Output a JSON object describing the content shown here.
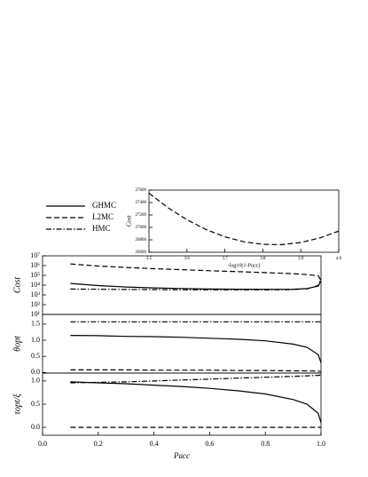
{
  "chart_data": [
    {
      "type": "line",
      "ylabel": "Cost",
      "log_y": true,
      "x": [
        0.1,
        0.2,
        0.3,
        0.4,
        0.5,
        0.6,
        0.7,
        0.8,
        0.9,
        0.95,
        0.99,
        1.0
      ],
      "xlim": [
        0,
        1.0
      ],
      "ylim": [
        10,
        10000000
      ],
      "yticks": [
        {
          "value": 10,
          "label": "10¹"
        },
        {
          "value": 100,
          "label": "10²"
        },
        {
          "value": 1000,
          "label": "10³"
        },
        {
          "value": 10000,
          "label": "10⁴"
        },
        {
          "value": 100000,
          "label": "10⁵"
        },
        {
          "value": 1000000,
          "label": "10⁶"
        },
        {
          "value": 10000000,
          "label": "10⁷"
        }
      ],
      "series": [
        {
          "name": "GHMC",
          "color": "#000000",
          "dash": "solid",
          "values": [
            15000,
            9000,
            6500,
            5200,
            4500,
            4000,
            3800,
            3700,
            3800,
            4500,
            8000,
            30000
          ]
        },
        {
          "name": "L2MC",
          "color": "#000000",
          "dash": "dashed",
          "values": [
            1500000,
            900000,
            650000,
            480000,
            380000,
            300000,
            240000,
            190000,
            150000,
            120000,
            90000,
            30000
          ]
        },
        {
          "name": "HMC",
          "color": "#000000",
          "dash": "dashdot",
          "values": [
            4000,
            3800,
            3600,
            3500,
            3400,
            3300,
            3300,
            3300,
            3500,
            4200,
            9000,
            50000
          ]
        }
      ]
    },
    {
      "type": "line",
      "ylabel": "θopt",
      "x": [
        0.1,
        0.2,
        0.3,
        0.4,
        0.5,
        0.6,
        0.7,
        0.8,
        0.9,
        0.95,
        0.99,
        1.0
      ],
      "xlim": [
        0,
        1.0
      ],
      "ylim": [
        -0.02,
        1.8
      ],
      "yticks": [
        "0.0",
        "0.5",
        "1.0",
        "1.5"
      ],
      "series": [
        {
          "color": "#000000",
          "dash": "solid",
          "values": [
            1.15,
            1.14,
            1.12,
            1.11,
            1.09,
            1.06,
            1.03,
            0.98,
            0.88,
            0.78,
            0.55,
            0.3
          ]
        },
        {
          "color": "#000000",
          "dash": "dashed",
          "values": [
            0.08,
            0.08,
            0.08,
            0.07,
            0.07,
            0.07,
            0.06,
            0.06,
            0.05,
            0.05,
            0.04,
            0.03
          ]
        },
        {
          "color": "#000000",
          "dash": "dashdot",
          "values": [
            1.57,
            1.57,
            1.57,
            1.57,
            1.57,
            1.57,
            1.57,
            1.57,
            1.57,
            1.57,
            1.57,
            1.57
          ]
        }
      ]
    },
    {
      "type": "line",
      "ylabel": "τopt/ξ",
      "xlabel": "Pacc",
      "x": [
        0.1,
        0.2,
        0.3,
        0.4,
        0.5,
        0.6,
        0.7,
        0.8,
        0.9,
        0.95,
        0.99,
        1.0
      ],
      "xlim": [
        0,
        1.0
      ],
      "ylim": [
        -0.17,
        1.17
      ],
      "yticks": [
        "0.0",
        "0.5",
        "1.0"
      ],
      "xticks": [
        "0.0",
        "0.2",
        "0.4",
        "0.6",
        "0.8",
        "1.0"
      ],
      "series": [
        {
          "color": "#000000",
          "dash": "solid",
          "values": [
            0.98,
            0.96,
            0.94,
            0.91,
            0.88,
            0.84,
            0.79,
            0.72,
            0.6,
            0.5,
            0.3,
            0.1
          ]
        },
        {
          "color": "#000000",
          "dash": "dashed",
          "values": [
            0,
            0,
            0,
            0,
            0,
            0,
            0,
            0,
            0,
            0,
            0,
            0
          ]
        },
        {
          "color": "#000000",
          "dash": "dashdot",
          "values": [
            0.96,
            0.97,
            0.98,
            1.0,
            1.02,
            1.04,
            1.06,
            1.08,
            1.1,
            1.11,
            1.12,
            1.13
          ]
        }
      ]
    },
    {
      "type": "line",
      "ylabel": "Cost",
      "xlabel": "-log10(1-Pacc)",
      "x": [
        3.5,
        3.55,
        3.6,
        3.65,
        3.7,
        3.75,
        3.8,
        3.85,
        3.9,
        3.95,
        4.0
      ],
      "xlim": [
        3.5,
        4.0
      ],
      "ylim": [
        26600,
        27600
      ],
      "xticks": [
        "3.5",
        "3.6",
        "3.7",
        "3.8",
        "3.9",
        "4.0"
      ],
      "yticks": [
        26600,
        26800,
        27000,
        27200,
        27400,
        27600
      ],
      "series": [
        {
          "color": "#000000",
          "dash": "dashed",
          "values": [
            27550,
            27317,
            27123,
            26967,
            26849,
            26769,
            26727,
            26723,
            26757,
            26830,
            26940
          ]
        }
      ]
    }
  ]
}
